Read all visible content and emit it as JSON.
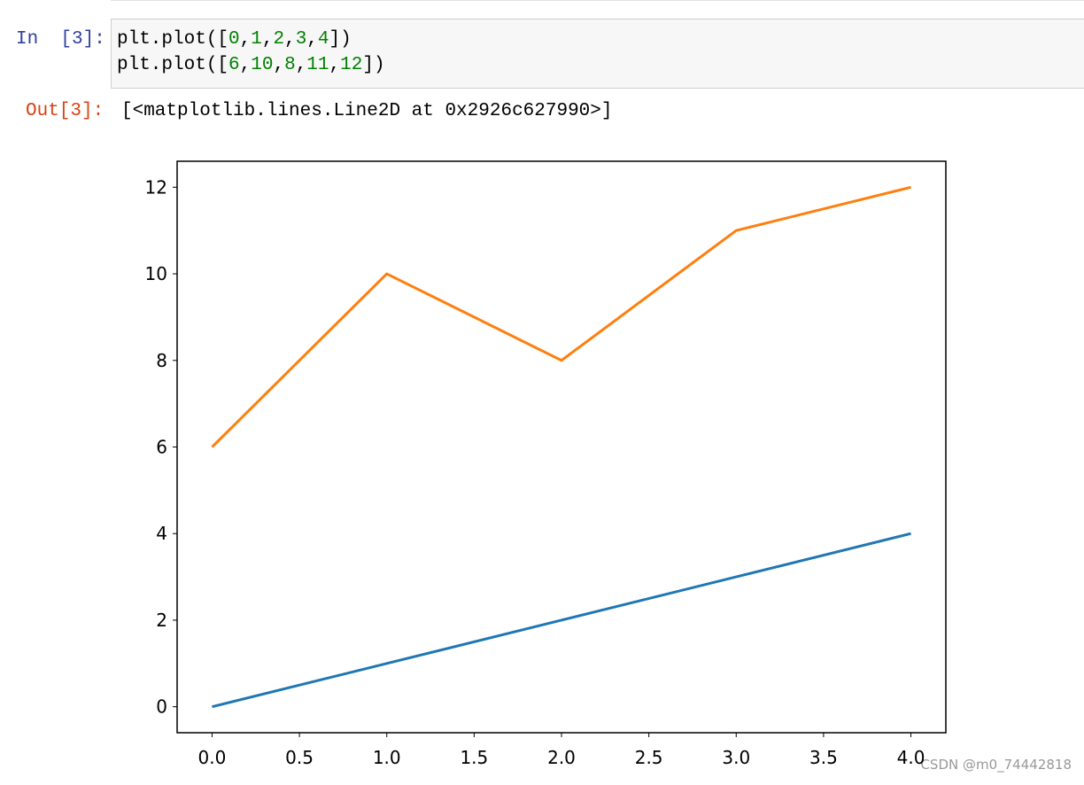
{
  "cell": {
    "in_prompt": "In  [3]:",
    "code": [
      "plt.plot([0,1,2,3,4])",
      "plt.plot([6,10,8,11,12])"
    ],
    "out_prompt": "Out[3]:",
    "output": "[<matplotlib.lines.Line2D at 0x2926c627990>]"
  },
  "chart_data": {
    "type": "line",
    "x": [
      0,
      1,
      2,
      3,
      4
    ],
    "series": [
      {
        "color": "#1f77b4",
        "values": [
          0,
          1,
          2,
          3,
          4
        ]
      },
      {
        "color": "#ff7f0e",
        "values": [
          6,
          10,
          8,
          11,
          12
        ]
      }
    ],
    "xlim": [
      -0.2,
      4.2
    ],
    "ylim": [
      -0.6,
      12.6
    ],
    "xticks": [
      {
        "value": 0,
        "label": "0.0"
      },
      {
        "value": 0.5,
        "label": "0.5"
      },
      {
        "value": 1,
        "label": "1.0"
      },
      {
        "value": 1.5,
        "label": "1.5"
      },
      {
        "value": 2,
        "label": "2.0"
      },
      {
        "value": 2.5,
        "label": "2.5"
      },
      {
        "value": 3,
        "label": "3.0"
      },
      {
        "value": 3.5,
        "label": "3.5"
      },
      {
        "value": 4,
        "label": "4.0"
      }
    ],
    "yticks": [
      0,
      2,
      4,
      6,
      8,
      10,
      12
    ],
    "grid": false
  },
  "watermark": "CSDN @m0_74442818"
}
